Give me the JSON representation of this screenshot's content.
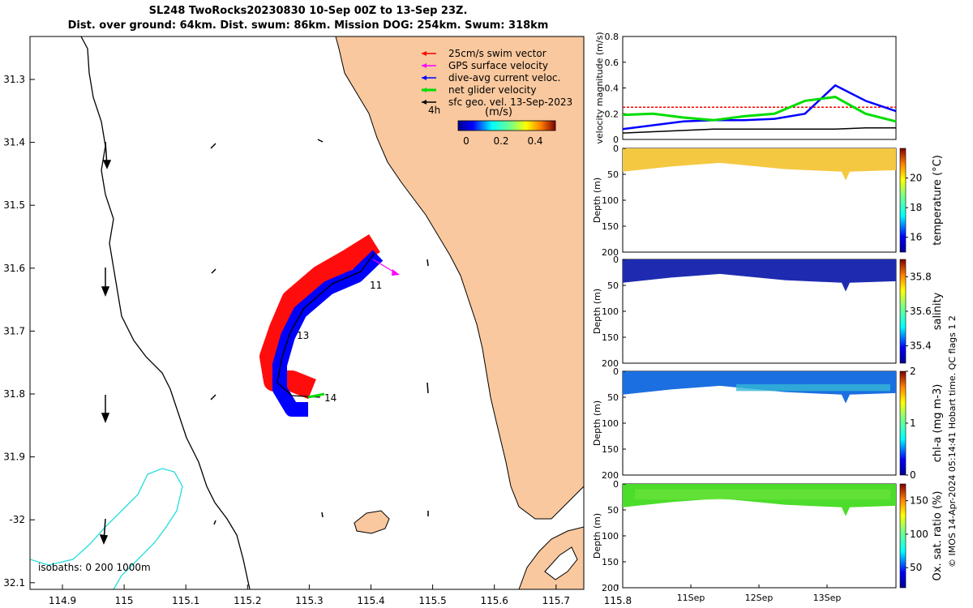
{
  "title": {
    "line1": "SL248 TwoRocks20230830 10-Sep 00Z to 13-Sep 23Z.",
    "line2": "Dist. over ground: 64km. Dist. swum: 86km. Mission DOG: 254km. Swum: 318km"
  },
  "map": {
    "lon_ticks": [
      "114.9",
      "115",
      "115.1",
      "115.2",
      "115.3",
      "115.4",
      "115.5",
      "115.6",
      "115.7",
      "115.8"
    ],
    "lat_ticks": [
      "31.3",
      "31.4",
      "31.5",
      "31.6",
      "31.7",
      "31.8",
      "31.9",
      "-32",
      "32.1"
    ],
    "legend": [
      {
        "label": "25cm/s swim vector",
        "color": "#ff0000"
      },
      {
        "label": "GPS surface velocity",
        "color": "#ff00ff"
      },
      {
        "label": "dive-avg current veloc.",
        "color": "#0000ff"
      },
      {
        "label": "net glider velocity",
        "color": "#00dd00"
      },
      {
        "label": "sfc geo. vel. 13-Sep-2023",
        "color": "#000000"
      }
    ],
    "time_step_label": "4h",
    "colorbar_units": "(m/s)",
    "colorbar_ticks": [
      "0",
      "0.2",
      "0.4"
    ],
    "day_labels": [
      "11",
      "13",
      "14"
    ],
    "isobaths_label": "isobaths: 0    200  1000m",
    "land_color": "#f9c89e"
  },
  "velocity_panel": {
    "ylabel": "velocity magnitude (m/s)",
    "yticks": [
      "0",
      "0.2",
      "0.4",
      "0.6",
      "0.8"
    ]
  },
  "section_panels": [
    {
      "ylabel": "Depth (m)",
      "cbar_label": "temperature (°C)",
      "cbar_ticks": [
        "16",
        "18",
        "20"
      ]
    },
    {
      "ylabel": "Depth (m)",
      "cbar_label": "salinity",
      "cbar_ticks": [
        "35.4",
        "35.6",
        "35.8"
      ]
    },
    {
      "ylabel": "Depth (m)",
      "cbar_label": "chl-a (mg m-3)",
      "cbar_ticks": [
        "0",
        "1",
        "2"
      ]
    },
    {
      "ylabel": "Depth (m)",
      "cbar_label": "Ox. sat. ratio (%)",
      "cbar_ticks": [
        "50",
        "100",
        "150"
      ]
    }
  ],
  "depth_ticks": [
    "0",
    "50",
    "100",
    "150",
    "200"
  ],
  "time_ticks": [
    "11Sep",
    "12Sep",
    "13Sep"
  ],
  "credit": "© IMOS 14-Apr-2024 05:14:41 Hobart time. QC flags 1  2",
  "chart_data": [
    {
      "type": "line",
      "title": "velocity magnitude",
      "ylabel": "velocity magnitude (m/s)",
      "ylim": [
        0,
        0.8
      ],
      "x": [
        "10-Sep 00Z",
        "10-Sep 12Z",
        "11-Sep 00Z",
        "11-Sep 12Z",
        "12-Sep 00Z",
        "12-Sep 12Z",
        "13-Sep 00Z",
        "13-Sep 08Z",
        "13-Sep 12Z",
        "13-Sep 23Z"
      ],
      "series": [
        {
          "name": "25cm/s swim vector",
          "color": "#ff0000",
          "values": [
            0.25,
            0.25,
            0.25,
            0.25,
            0.25,
            0.25,
            0.25,
            0.25,
            0.25,
            0.25
          ]
        },
        {
          "name": "dive-avg current veloc.",
          "color": "#0000ff",
          "values": [
            0.08,
            0.11,
            0.14,
            0.15,
            0.15,
            0.16,
            0.2,
            0.42,
            0.3,
            0.22
          ]
        },
        {
          "name": "net glider velocity",
          "color": "#00dd00",
          "values": [
            0.19,
            0.2,
            0.17,
            0.15,
            0.18,
            0.2,
            0.3,
            0.33,
            0.2,
            0.14
          ]
        },
        {
          "name": "sfc geo. vel. 13-Sep-2023",
          "color": "#000000",
          "values": [
            0.05,
            0.06,
            0.07,
            0.08,
            0.08,
            0.08,
            0.08,
            0.08,
            0.09,
            0.09
          ]
        }
      ]
    },
    {
      "type": "heatmap",
      "title": "temperature section",
      "ylabel": "Depth (m)",
      "colorbar_label": "temperature (°C)",
      "colorbar_range": [
        15,
        22
      ],
      "ylim": [
        200,
        0
      ],
      "x": [
        "11Sep",
        "12Sep",
        "13Sep"
      ],
      "surface_value_range": [
        19,
        20
      ]
    },
    {
      "type": "heatmap",
      "title": "salinity section",
      "ylabel": "Depth (m)",
      "colorbar_label": "salinity",
      "colorbar_range": [
        35.3,
        35.9
      ],
      "ylim": [
        200,
        0
      ],
      "x": [
        "11Sep",
        "12Sep",
        "13Sep"
      ],
      "surface_value_range": [
        35.35,
        35.4
      ]
    },
    {
      "type": "heatmap",
      "title": "chl-a section",
      "ylabel": "Depth (m)",
      "colorbar_label": "chl-a (mg m-3)",
      "colorbar_range": [
        0,
        2
      ],
      "ylim": [
        200,
        0
      ],
      "x": [
        "11Sep",
        "12Sep",
        "13Sep"
      ],
      "surface_value_range": [
        0.3,
        0.8
      ]
    },
    {
      "type": "heatmap",
      "title": "oxygen saturation section",
      "ylabel": "Depth (m)",
      "colorbar_label": "Ox. sat. ratio (%)",
      "colorbar_range": [
        20,
        175
      ],
      "ylim": [
        200,
        0
      ],
      "x": [
        "11Sep",
        "12Sep",
        "13Sep"
      ],
      "surface_value_range": [
        105,
        115
      ]
    }
  ]
}
